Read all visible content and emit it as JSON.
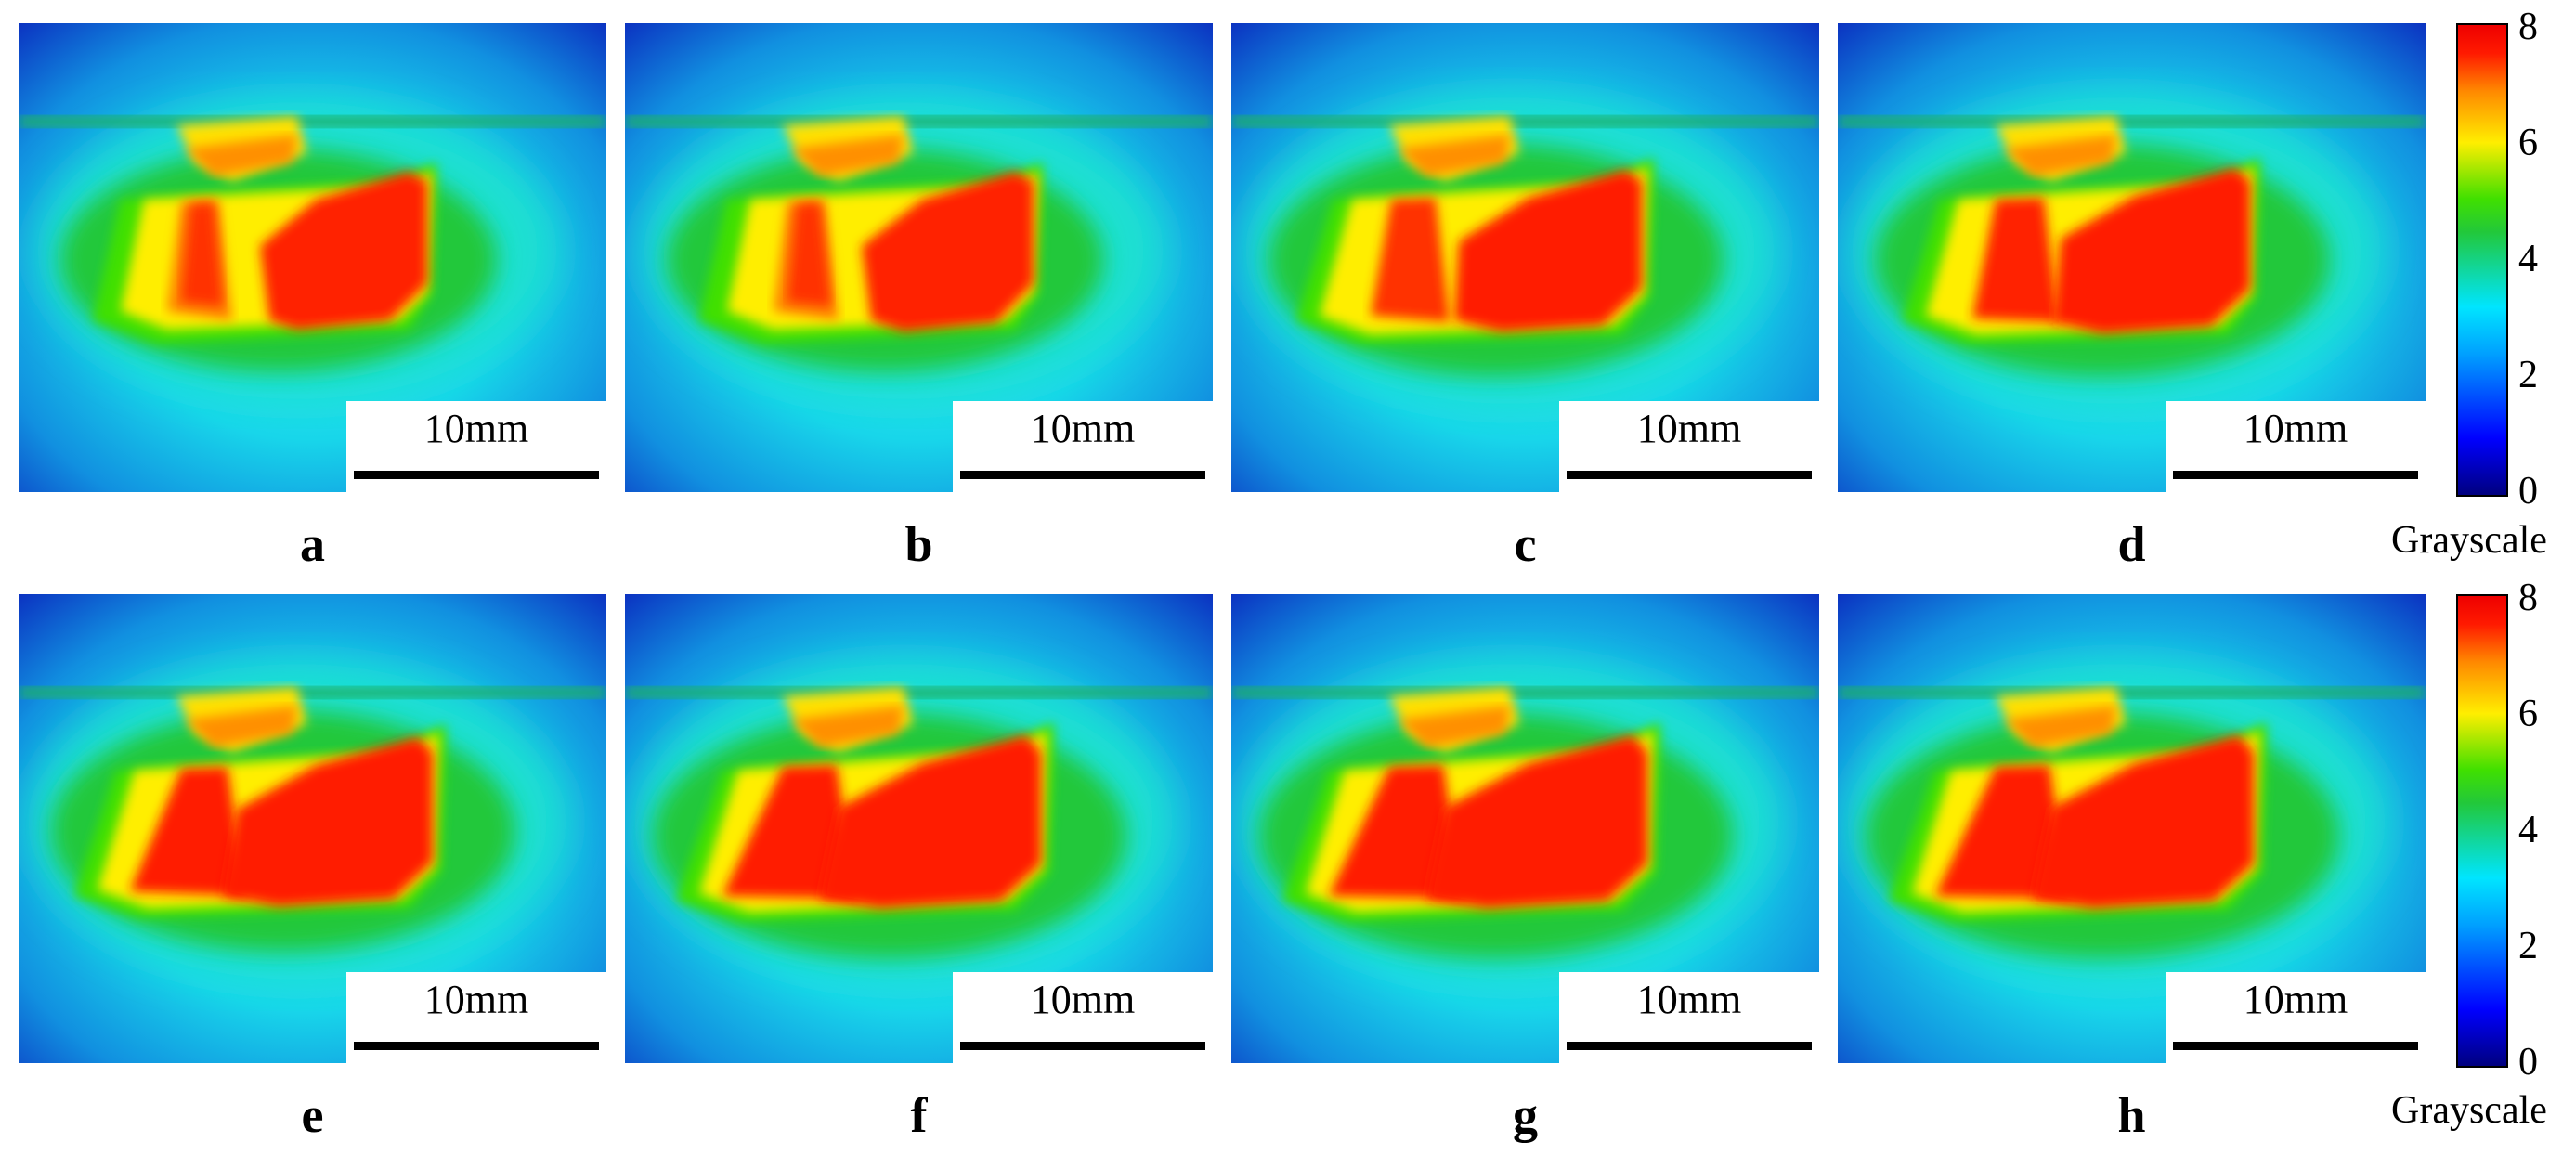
{
  "panels": [
    {
      "label": "a",
      "scale": "10mm"
    },
    {
      "label": "b",
      "scale": "10mm"
    },
    {
      "label": "c",
      "scale": "10mm"
    },
    {
      "label": "d",
      "scale": "10mm"
    },
    {
      "label": "e",
      "scale": "10mm"
    },
    {
      "label": "f",
      "scale": "10mm"
    },
    {
      "label": "g",
      "scale": "10mm"
    },
    {
      "label": "h",
      "scale": "10mm"
    }
  ],
  "colorbars": [
    {
      "title": "Grayscale",
      "ticks": [
        "8",
        "6",
        "4",
        "2",
        "0"
      ]
    },
    {
      "title": "Grayscale",
      "ticks": [
        "8",
        "6",
        "4",
        "2",
        "0"
      ]
    }
  ],
  "colors": {
    "hot": "#ff1a00",
    "warm": "#ffee00",
    "mid": "#22c83a",
    "cool": "#1fe0e0",
    "cold": "#0a2ec8"
  }
}
